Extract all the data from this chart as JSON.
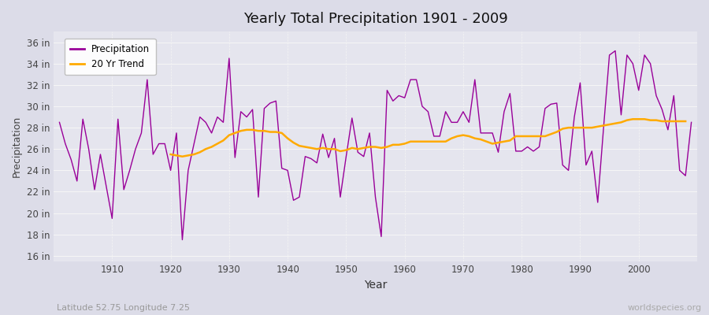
{
  "title": "Yearly Total Precipitation 1901 - 2009",
  "xlabel": "Year",
  "ylabel": "Precipitation",
  "lat_lon_label": "Latitude 52.75 Longitude 7.25",
  "watermark": "worldspecies.org",
  "precip_color": "#990099",
  "trend_color": "#ffaa00",
  "fig_bg_color": "#dcdce8",
  "plot_bg_color": "#e5e5ee",
  "grid_color": "#f5f5f5",
  "ylim": [
    15.5,
    37.0
  ],
  "yticks": [
    16,
    18,
    20,
    22,
    24,
    26,
    28,
    30,
    32,
    34,
    36
  ],
  "ytick_labels": [
    "16 in",
    "18 in",
    "20 in",
    "22 in",
    "24 in",
    "26 in",
    "28 in",
    "30 in",
    "32 in",
    "34 in",
    "36 in"
  ],
  "years": [
    1901,
    1902,
    1903,
    1904,
    1905,
    1906,
    1907,
    1908,
    1909,
    1910,
    1911,
    1912,
    1913,
    1914,
    1915,
    1916,
    1917,
    1918,
    1919,
    1920,
    1921,
    1922,
    1923,
    1924,
    1925,
    1926,
    1927,
    1928,
    1929,
    1930,
    1931,
    1932,
    1933,
    1934,
    1935,
    1936,
    1937,
    1938,
    1939,
    1940,
    1941,
    1942,
    1943,
    1944,
    1945,
    1946,
    1947,
    1948,
    1949,
    1950,
    1951,
    1952,
    1953,
    1954,
    1955,
    1956,
    1957,
    1958,
    1959,
    1960,
    1961,
    1962,
    1963,
    1964,
    1965,
    1966,
    1967,
    1968,
    1969,
    1970,
    1971,
    1972,
    1973,
    1974,
    1975,
    1976,
    1977,
    1978,
    1979,
    1980,
    1981,
    1982,
    1983,
    1984,
    1985,
    1986,
    1987,
    1988,
    1989,
    1990,
    1991,
    1992,
    1993,
    1994,
    1995,
    1996,
    1997,
    1998,
    1999,
    2000,
    2001,
    2002,
    2003,
    2004,
    2005,
    2006,
    2007,
    2008,
    2009
  ],
  "precip": [
    28.5,
    26.5,
    25.0,
    23.0,
    28.8,
    26.0,
    22.2,
    25.5,
    22.5,
    19.5,
    28.8,
    22.2,
    24.0,
    26.0,
    27.5,
    32.5,
    25.5,
    26.5,
    26.5,
    24.0,
    27.5,
    17.5,
    24.0,
    26.5,
    29.0,
    28.5,
    27.5,
    29.0,
    28.5,
    34.5,
    25.2,
    29.5,
    29.0,
    29.7,
    21.5,
    29.8,
    30.3,
    30.5,
    24.2,
    24.0,
    21.2,
    21.5,
    25.3,
    25.1,
    24.7,
    27.4,
    25.2,
    27.0,
    21.5,
    25.3,
    28.9,
    25.7,
    25.3,
    27.5,
    21.5,
    17.8,
    31.5,
    30.5,
    31.0,
    30.8,
    32.5,
    32.5,
    30.0,
    29.5,
    27.2,
    27.2,
    29.5,
    28.5,
    28.5,
    29.5,
    28.5,
    32.5,
    27.5,
    27.5,
    27.5,
    25.7,
    29.5,
    31.2,
    25.8,
    25.8,
    26.2,
    25.8,
    26.2,
    29.8,
    30.2,
    30.3,
    24.5,
    24.0,
    29.0,
    32.2,
    24.5,
    25.8,
    21.0,
    28.0,
    34.8,
    35.2,
    29.2,
    34.8,
    34.0,
    31.5,
    34.8,
    34.0,
    31.0,
    29.7,
    27.8,
    31.0,
    24.0,
    23.5,
    28.5
  ],
  "trend": [
    null,
    null,
    null,
    null,
    null,
    null,
    null,
    null,
    null,
    null,
    null,
    null,
    null,
    null,
    null,
    null,
    null,
    null,
    null,
    25.5,
    25.4,
    25.3,
    25.4,
    25.5,
    25.7,
    26.0,
    26.2,
    26.5,
    26.8,
    27.3,
    27.5,
    27.7,
    27.8,
    27.8,
    27.7,
    27.7,
    27.6,
    27.6,
    27.5,
    27.0,
    26.6,
    26.3,
    26.2,
    26.1,
    26.0,
    26.1,
    26.0,
    26.0,
    25.8,
    25.9,
    26.1,
    26.0,
    26.1,
    26.2,
    26.2,
    26.1,
    26.2,
    26.4,
    26.4,
    26.5,
    26.7,
    26.7,
    26.7,
    26.7,
    26.7,
    26.7,
    26.7,
    27.0,
    27.2,
    27.3,
    27.2,
    27.0,
    26.9,
    26.7,
    26.5,
    26.6,
    26.7,
    26.8,
    27.2,
    27.2,
    27.2,
    27.2,
    27.2,
    27.2,
    27.4,
    27.6,
    27.9,
    28.0,
    28.0,
    28.0,
    28.0,
    28.0,
    28.1,
    28.2,
    28.3,
    28.4,
    28.5,
    28.7,
    28.8,
    28.8,
    28.8,
    28.7,
    28.7,
    28.6,
    28.6,
    28.6,
    28.6,
    28.6
  ]
}
